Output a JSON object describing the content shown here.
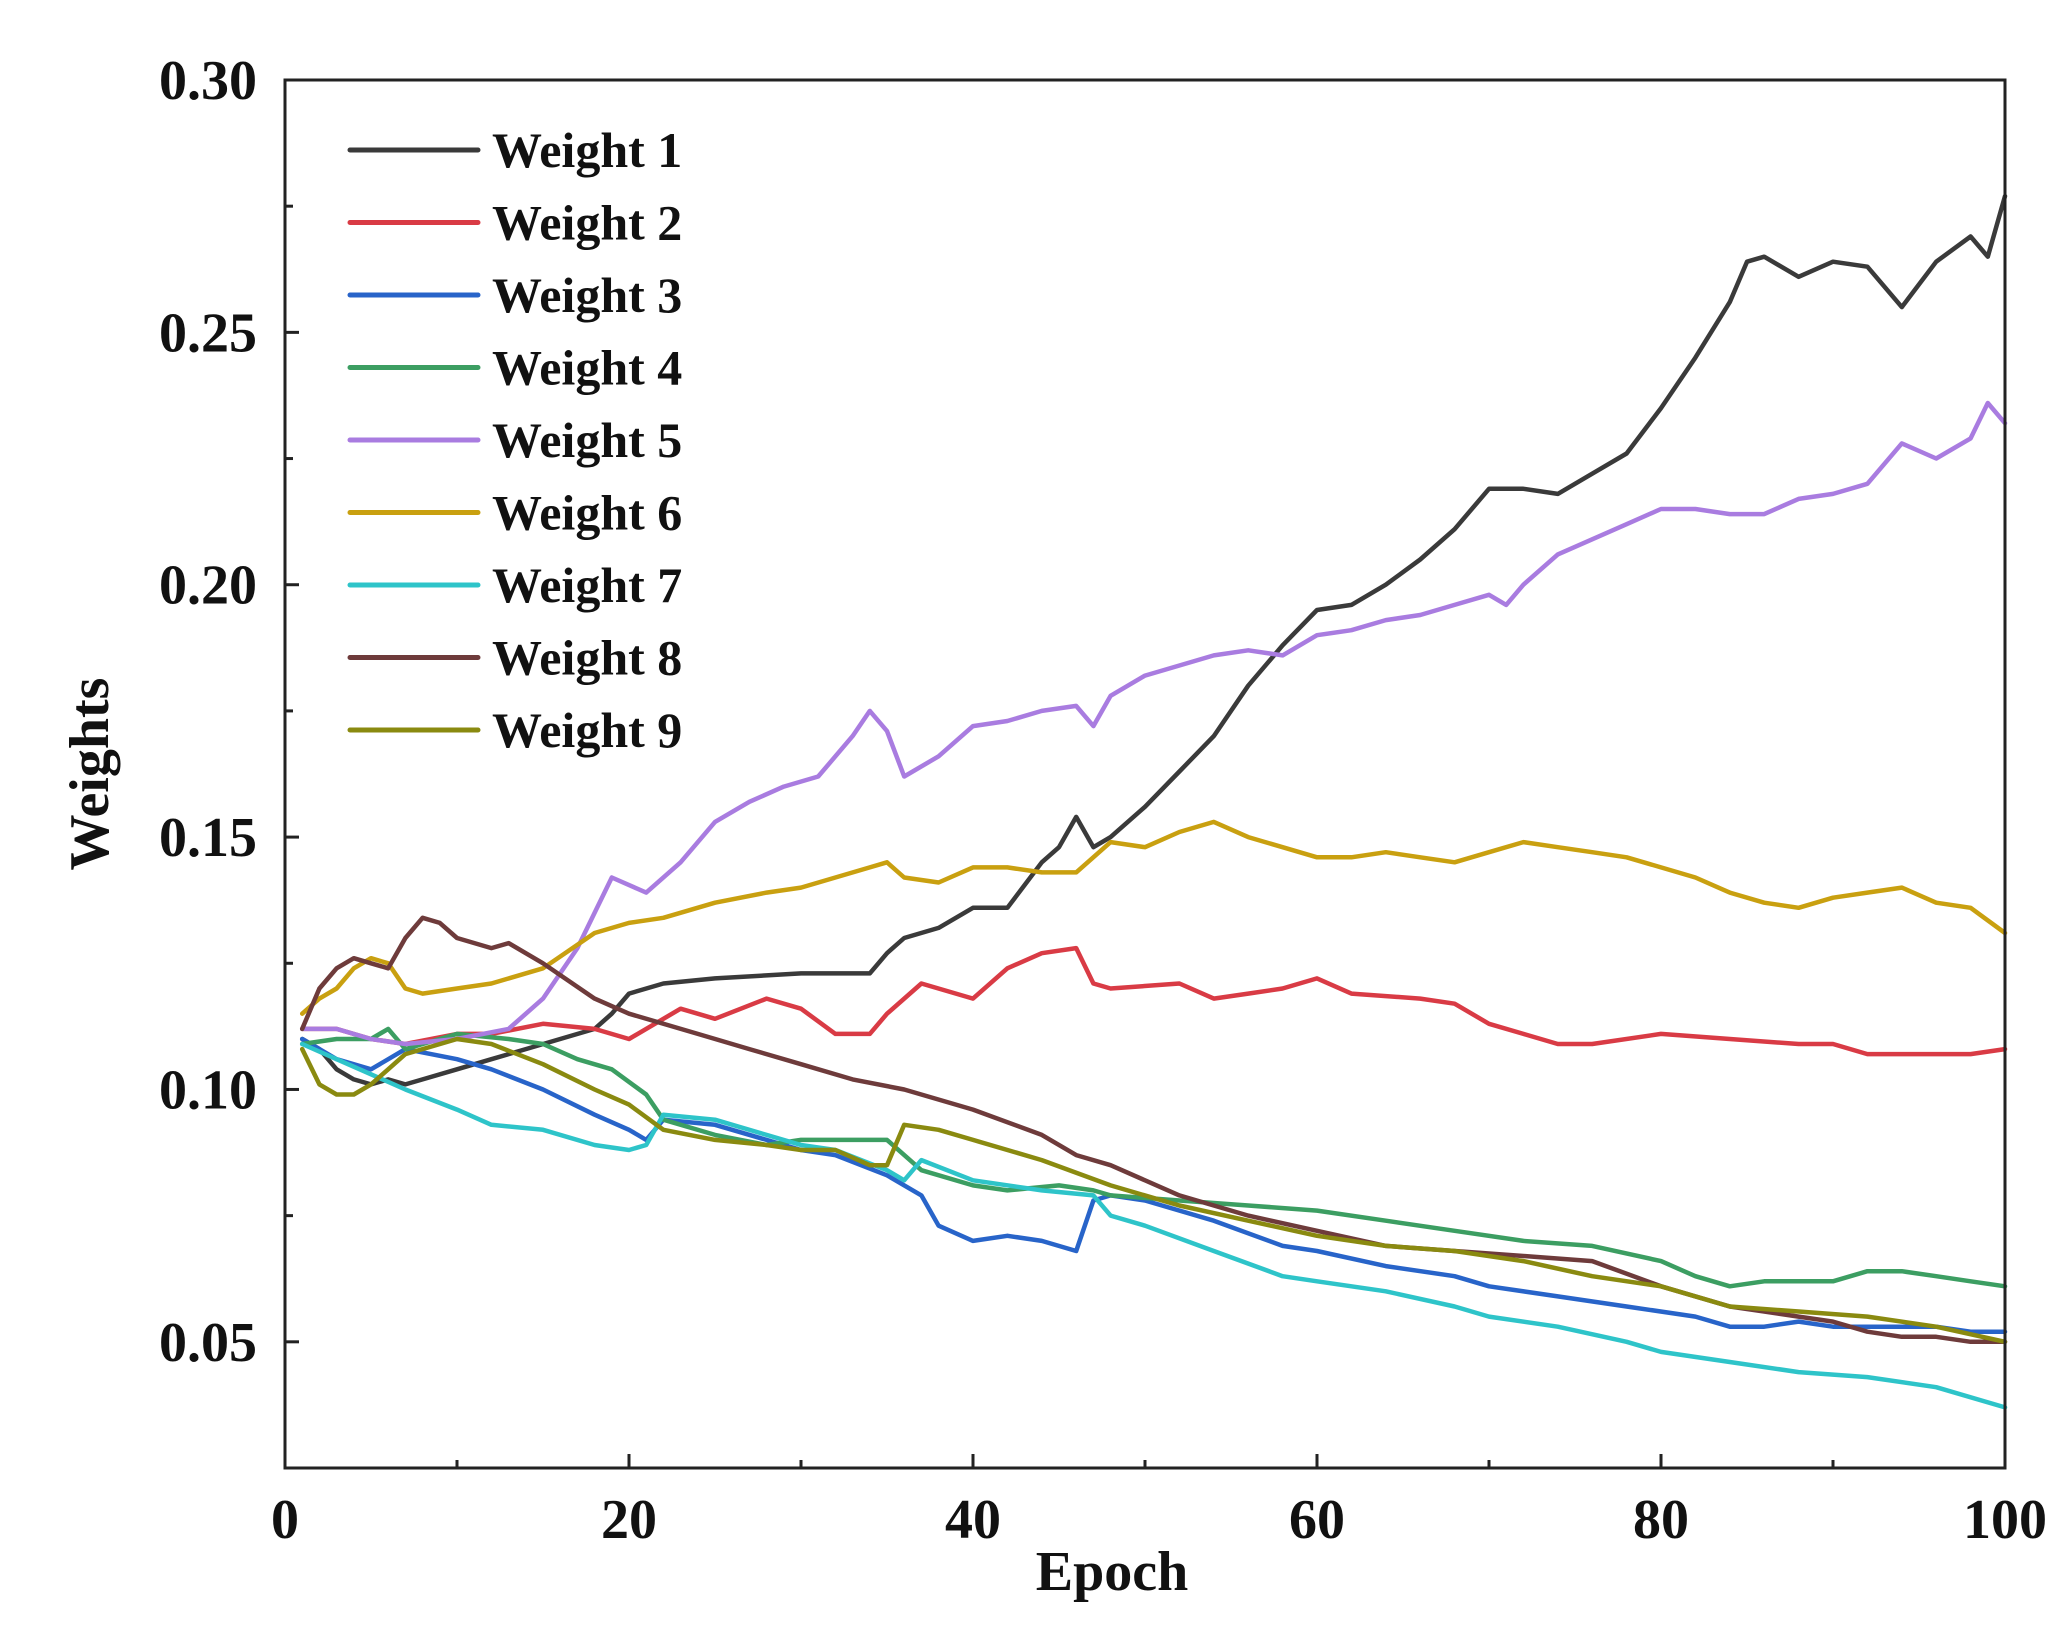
{
  "chart_data": {
    "type": "line",
    "title": "",
    "xlabel": "Epoch",
    "ylabel": "Weights",
    "xlim": [
      0,
      100
    ],
    "ylim": [
      0.025,
      0.3
    ],
    "xticks": [
      0,
      20,
      40,
      60,
      80,
      100
    ],
    "xtick_labels": [
      "0",
      "20",
      "40",
      "60",
      "80",
      "100"
    ],
    "yticks": [
      0.05,
      0.1,
      0.15,
      0.2,
      0.25,
      0.3
    ],
    "ytick_labels": [
      "0.05",
      "0.10",
      "0.15",
      "0.20",
      "0.25",
      "0.30"
    ],
    "grid": false,
    "legend_position": "top-left",
    "series": [
      {
        "name": "Weight 1",
        "color": "#3a3a3a",
        "x": [
          1,
          2,
          3,
          4,
          5,
          6,
          7,
          8,
          10,
          12,
          14,
          16,
          18,
          19,
          20,
          22,
          25,
          30,
          34,
          35,
          36,
          38,
          40,
          42,
          44,
          45,
          46,
          47,
          48,
          50,
          52,
          54,
          56,
          58,
          60,
          62,
          64,
          66,
          68,
          70,
          72,
          74,
          76,
          78,
          80,
          82,
          84,
          85,
          86,
          88,
          90,
          92,
          94,
          96,
          98,
          99,
          100
        ],
        "values": [
          0.11,
          0.108,
          0.104,
          0.102,
          0.101,
          0.102,
          0.101,
          0.102,
          0.104,
          0.106,
          0.108,
          0.11,
          0.112,
          0.115,
          0.119,
          0.121,
          0.122,
          0.123,
          0.123,
          0.127,
          0.13,
          0.132,
          0.136,
          0.136,
          0.145,
          0.148,
          0.154,
          0.148,
          0.15,
          0.156,
          0.163,
          0.17,
          0.18,
          0.188,
          0.195,
          0.196,
          0.2,
          0.205,
          0.211,
          0.219,
          0.219,
          0.218,
          0.222,
          0.226,
          0.235,
          0.245,
          0.256,
          0.264,
          0.265,
          0.261,
          0.264,
          0.263,
          0.255,
          0.264,
          0.269,
          0.265,
          0.277
        ]
      },
      {
        "name": "Weight 2",
        "color": "#d93b45",
        "x": [
          1,
          3,
          5,
          7,
          10,
          12,
          15,
          18,
          20,
          23,
          25,
          28,
          30,
          32,
          34,
          35,
          37,
          40,
          42,
          44,
          46,
          47,
          48,
          52,
          54,
          56,
          58,
          60,
          62,
          66,
          68,
          70,
          72,
          74,
          76,
          80,
          84,
          88,
          90,
          92,
          94,
          96,
          98,
          100
        ],
        "values": [
          0.112,
          0.112,
          0.11,
          0.109,
          0.111,
          0.111,
          0.113,
          0.112,
          0.11,
          0.116,
          0.114,
          0.118,
          0.116,
          0.111,
          0.111,
          0.115,
          0.121,
          0.118,
          0.124,
          0.127,
          0.128,
          0.121,
          0.12,
          0.121,
          0.118,
          0.119,
          0.12,
          0.122,
          0.119,
          0.118,
          0.117,
          0.113,
          0.111,
          0.109,
          0.109,
          0.111,
          0.11,
          0.109,
          0.109,
          0.107,
          0.107,
          0.107,
          0.107,
          0.108
        ]
      },
      {
        "name": "Weight 3",
        "color": "#2864c9",
        "x": [
          1,
          3,
          5,
          7,
          10,
          12,
          15,
          18,
          20,
          21,
          22,
          25,
          28,
          30,
          32,
          35,
          37,
          38,
          40,
          42,
          44,
          46,
          47,
          48,
          50,
          54,
          58,
          60,
          64,
          68,
          70,
          74,
          78,
          82,
          84,
          86,
          88,
          90,
          92,
          94,
          96,
          98,
          100
        ],
        "values": [
          0.11,
          0.106,
          0.104,
          0.108,
          0.106,
          0.104,
          0.1,
          0.095,
          0.092,
          0.09,
          0.094,
          0.093,
          0.09,
          0.088,
          0.087,
          0.083,
          0.079,
          0.073,
          0.07,
          0.071,
          0.07,
          0.068,
          0.078,
          0.079,
          0.078,
          0.074,
          0.069,
          0.068,
          0.065,
          0.063,
          0.061,
          0.059,
          0.057,
          0.055,
          0.053,
          0.053,
          0.054,
          0.053,
          0.053,
          0.053,
          0.053,
          0.052,
          0.052
        ]
      },
      {
        "name": "Weight 4",
        "color": "#3c9e62",
        "x": [
          1,
          3,
          5,
          6,
          7,
          10,
          13,
          15,
          17,
          19,
          21,
          22,
          25,
          28,
          30,
          32,
          35,
          37,
          40,
          42,
          45,
          47,
          48,
          52,
          56,
          60,
          64,
          68,
          72,
          76,
          80,
          82,
          84,
          86,
          88,
          90,
          92,
          94,
          96,
          98,
          100
        ],
        "values": [
          0.109,
          0.11,
          0.11,
          0.112,
          0.108,
          0.111,
          0.11,
          0.109,
          0.106,
          0.104,
          0.099,
          0.094,
          0.091,
          0.089,
          0.09,
          0.09,
          0.09,
          0.084,
          0.081,
          0.08,
          0.081,
          0.08,
          0.079,
          0.078,
          0.077,
          0.076,
          0.074,
          0.072,
          0.07,
          0.069,
          0.066,
          0.063,
          0.061,
          0.062,
          0.062,
          0.062,
          0.064,
          0.064,
          0.063,
          0.062,
          0.061
        ]
      },
      {
        "name": "Weight 5",
        "color": "#a97ce0",
        "x": [
          1,
          3,
          5,
          7,
          10,
          13,
          15,
          17,
          19,
          21,
          23,
          25,
          27,
          29,
          31,
          33,
          34,
          35,
          36,
          38,
          40,
          42,
          44,
          46,
          47,
          48,
          50,
          52,
          54,
          56,
          58,
          60,
          62,
          64,
          66,
          68,
          70,
          71,
          72,
          74,
          76,
          78,
          80,
          82,
          84,
          85,
          86,
          88,
          90,
          92,
          94,
          96,
          98,
          99,
          100
        ],
        "values": [
          0.112,
          0.112,
          0.11,
          0.109,
          0.11,
          0.112,
          0.118,
          0.128,
          0.142,
          0.139,
          0.145,
          0.153,
          0.157,
          0.16,
          0.162,
          0.17,
          0.175,
          0.171,
          0.162,
          0.166,
          0.172,
          0.173,
          0.175,
          0.176,
          0.172,
          0.178,
          0.182,
          0.184,
          0.186,
          0.187,
          0.186,
          0.19,
          0.191,
          0.193,
          0.194,
          0.196,
          0.198,
          0.196,
          0.2,
          0.206,
          0.209,
          0.212,
          0.215,
          0.215,
          0.214,
          0.214,
          0.214,
          0.217,
          0.218,
          0.22,
          0.228,
          0.225,
          0.229,
          0.236,
          0.232
        ]
      },
      {
        "name": "Weight 6",
        "color": "#c9a010",
        "x": [
          1,
          2,
          3,
          4,
          5,
          6,
          7,
          8,
          10,
          12,
          15,
          18,
          20,
          22,
          25,
          28,
          30,
          32,
          34,
          35,
          36,
          38,
          40,
          42,
          44,
          46,
          48,
          50,
          52,
          54,
          56,
          58,
          60,
          62,
          64,
          66,
          68,
          70,
          72,
          74,
          76,
          78,
          80,
          82,
          84,
          86,
          88,
          90,
          92,
          94,
          96,
          98,
          100
        ],
        "values": [
          0.115,
          0.118,
          0.12,
          0.124,
          0.126,
          0.125,
          0.12,
          0.119,
          0.12,
          0.121,
          0.124,
          0.131,
          0.133,
          0.134,
          0.137,
          0.139,
          0.14,
          0.142,
          0.144,
          0.145,
          0.142,
          0.141,
          0.144,
          0.144,
          0.143,
          0.143,
          0.149,
          0.148,
          0.151,
          0.153,
          0.15,
          0.148,
          0.146,
          0.146,
          0.147,
          0.146,
          0.145,
          0.147,
          0.149,
          0.148,
          0.147,
          0.146,
          0.144,
          0.142,
          0.139,
          0.137,
          0.136,
          0.138,
          0.139,
          0.14,
          0.137,
          0.136,
          0.131
        ]
      },
      {
        "name": "Weight 7",
        "color": "#2ec4c9",
        "x": [
          1,
          3,
          5,
          7,
          10,
          12,
          15,
          18,
          20,
          21,
          22,
          25,
          28,
          30,
          32,
          35,
          36,
          37,
          40,
          44,
          47,
          48,
          50,
          54,
          58,
          60,
          64,
          68,
          70,
          74,
          78,
          80,
          84,
          88,
          92,
          96,
          100
        ],
        "values": [
          0.109,
          0.106,
          0.103,
          0.1,
          0.096,
          0.093,
          0.092,
          0.089,
          0.088,
          0.089,
          0.095,
          0.094,
          0.091,
          0.089,
          0.088,
          0.084,
          0.082,
          0.086,
          0.082,
          0.08,
          0.079,
          0.075,
          0.073,
          0.068,
          0.063,
          0.062,
          0.06,
          0.057,
          0.055,
          0.053,
          0.05,
          0.048,
          0.046,
          0.044,
          0.043,
          0.041,
          0.037
        ]
      },
      {
        "name": "Weight 8",
        "color": "#6e3b3b",
        "x": [
          1,
          2,
          3,
          4,
          5,
          6,
          7,
          8,
          9,
          10,
          12,
          13,
          15,
          18,
          20,
          24,
          27,
          30,
          33,
          36,
          40,
          44,
          46,
          48,
          52,
          56,
          60,
          64,
          68,
          72,
          76,
          80,
          84,
          86,
          88,
          90,
          92,
          94,
          96,
          98,
          100
        ],
        "values": [
          0.112,
          0.12,
          0.124,
          0.126,
          0.125,
          0.124,
          0.13,
          0.134,
          0.133,
          0.13,
          0.128,
          0.129,
          0.125,
          0.118,
          0.115,
          0.111,
          0.108,
          0.105,
          0.102,
          0.1,
          0.096,
          0.091,
          0.087,
          0.085,
          0.079,
          0.075,
          0.072,
          0.069,
          0.068,
          0.067,
          0.066,
          0.061,
          0.057,
          0.056,
          0.055,
          0.054,
          0.052,
          0.051,
          0.051,
          0.05,
          0.05
        ]
      },
      {
        "name": "Weight 9",
        "color": "#8a8a10",
        "x": [
          1,
          2,
          3,
          4,
          5,
          6,
          7,
          8,
          10,
          12,
          15,
          18,
          20,
          22,
          25,
          28,
          30,
          32,
          34,
          35,
          36,
          38,
          40,
          44,
          48,
          52,
          56,
          60,
          64,
          68,
          72,
          76,
          80,
          84,
          88,
          92,
          96,
          100
        ],
        "values": [
          0.108,
          0.101,
          0.099,
          0.099,
          0.101,
          0.104,
          0.107,
          0.108,
          0.11,
          0.109,
          0.105,
          0.1,
          0.097,
          0.092,
          0.09,
          0.089,
          0.088,
          0.088,
          0.085,
          0.085,
          0.093,
          0.092,
          0.09,
          0.086,
          0.081,
          0.077,
          0.074,
          0.071,
          0.069,
          0.068,
          0.066,
          0.063,
          0.061,
          0.057,
          0.056,
          0.055,
          0.053,
          0.05
        ]
      }
    ]
  }
}
